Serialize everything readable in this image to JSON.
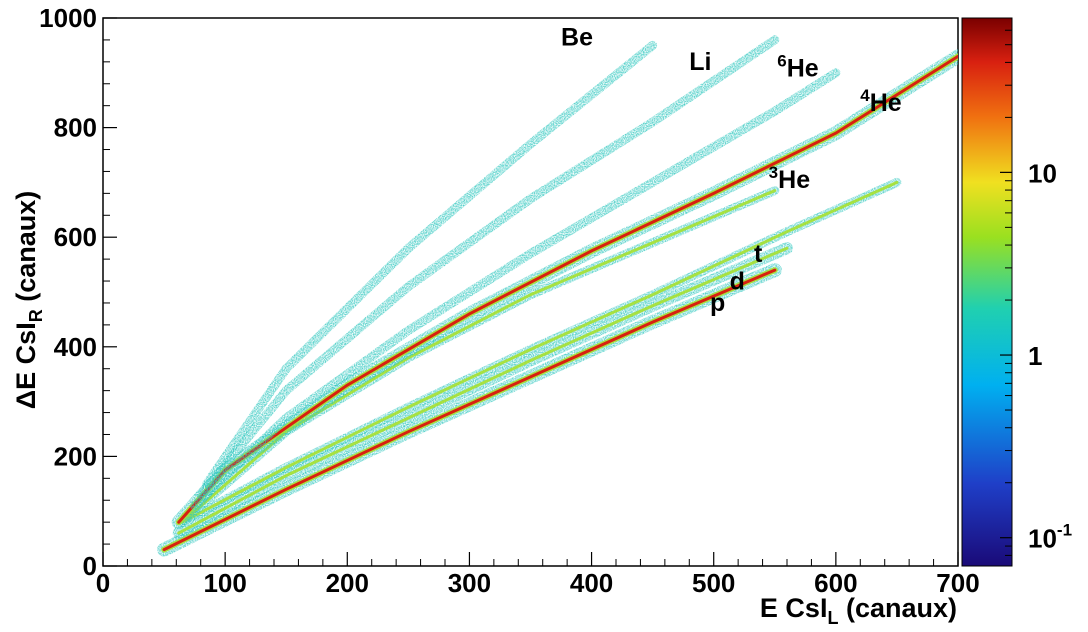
{
  "chart_data": {
    "type": "heatmap",
    "xlabel": {
      "main": "E CsI",
      "sub": "L",
      "tail": " (canaux)"
    },
    "ylabel": {
      "main": "ΔE CsI",
      "sub": "R",
      "tail": " (canaux)"
    },
    "xlim": [
      0,
      700
    ],
    "ylim": [
      0,
      1000
    ],
    "x_ticks": [
      "0",
      "100",
      "200",
      "300",
      "400",
      "500",
      "600",
      "700"
    ],
    "y_ticks": [
      "0",
      "200",
      "400",
      "600",
      "800",
      "1000"
    ],
    "x_tick_values": [
      0,
      100,
      200,
      300,
      400,
      500,
      600,
      700
    ],
    "y_tick_values": [
      0,
      200,
      400,
      600,
      800,
      1000
    ],
    "colorbar": {
      "scale": "log",
      "range": [
        0.07,
        70
      ],
      "ticks": [
        {
          "value": 0.1,
          "base": "10",
          "exp": "-1"
        },
        {
          "value": 1,
          "base": "1",
          "exp": ""
        },
        {
          "value": 10,
          "base": "10",
          "exp": ""
        }
      ],
      "colors": [
        "#1a0a78",
        "#1f3fc8",
        "#00b0f0",
        "#20d0b0",
        "#9ae020",
        "#f0e020",
        "#f07010",
        "#d82010",
        "#7a0000"
      ]
    },
    "bands": [
      {
        "particle": "p",
        "x": [
          50,
          150,
          250,
          350,
          450,
          550
        ],
        "y": [
          30,
          140,
          245,
          345,
          445,
          540
        ],
        "intensity": 40
      },
      {
        "particle": "d",
        "x": [
          62,
          150,
          250,
          350,
          450,
          560
        ],
        "y": [
          60,
          165,
          270,
          375,
          475,
          580
        ],
        "intensity": 5
      },
      {
        "particle": "t",
        "x": [
          65,
          150,
          250,
          350,
          450,
          560,
          650
        ],
        "y": [
          80,
          180,
          290,
          395,
          495,
          610,
          700
        ],
        "intensity": 2
      },
      {
        "particle": "3He",
        "x": [
          70,
          150,
          250,
          350,
          450,
          550
        ],
        "y": [
          90,
          245,
          380,
          495,
          590,
          685
        ],
        "intensity": 2
      },
      {
        "particle": "4He",
        "x": [
          62,
          100,
          200,
          300,
          400,
          500,
          600,
          700
        ],
        "y": [
          80,
          175,
          330,
          460,
          575,
          680,
          790,
          930
        ],
        "intensity": 45
      },
      {
        "particle": "6He",
        "x": [
          75,
          150,
          250,
          350,
          450,
          550,
          600
        ],
        "y": [
          110,
          270,
          430,
          570,
          700,
          830,
          900
        ],
        "intensity": 1
      },
      {
        "particle": "Li",
        "x": [
          80,
          150,
          250,
          350,
          450,
          550
        ],
        "y": [
          130,
          320,
          510,
          670,
          810,
          960
        ],
        "intensity": 1
      },
      {
        "particle": "Be",
        "x": [
          85,
          150,
          250,
          350,
          450
        ],
        "y": [
          150,
          360,
          580,
          770,
          950
        ],
        "intensity": 0.8
      }
    ],
    "annotations": [
      {
        "text": "Be",
        "sup": "",
        "x": 375,
        "y": 950
      },
      {
        "text": "Li",
        "sup": "",
        "x": 480,
        "y": 905
      },
      {
        "text": "He",
        "sup": "6",
        "x": 552,
        "y": 893
      },
      {
        "text": "He",
        "sup": "4",
        "x": 620,
        "y": 830
      },
      {
        "text": "He",
        "sup": "3",
        "x": 545,
        "y": 690
      },
      {
        "text": "p",
        "sup": "",
        "x": 497,
        "y": 465
      },
      {
        "text": "d",
        "sup": "",
        "x": 513,
        "y": 505
      },
      {
        "text": "t",
        "sup": "",
        "x": 533,
        "y": 555
      }
    ]
  }
}
